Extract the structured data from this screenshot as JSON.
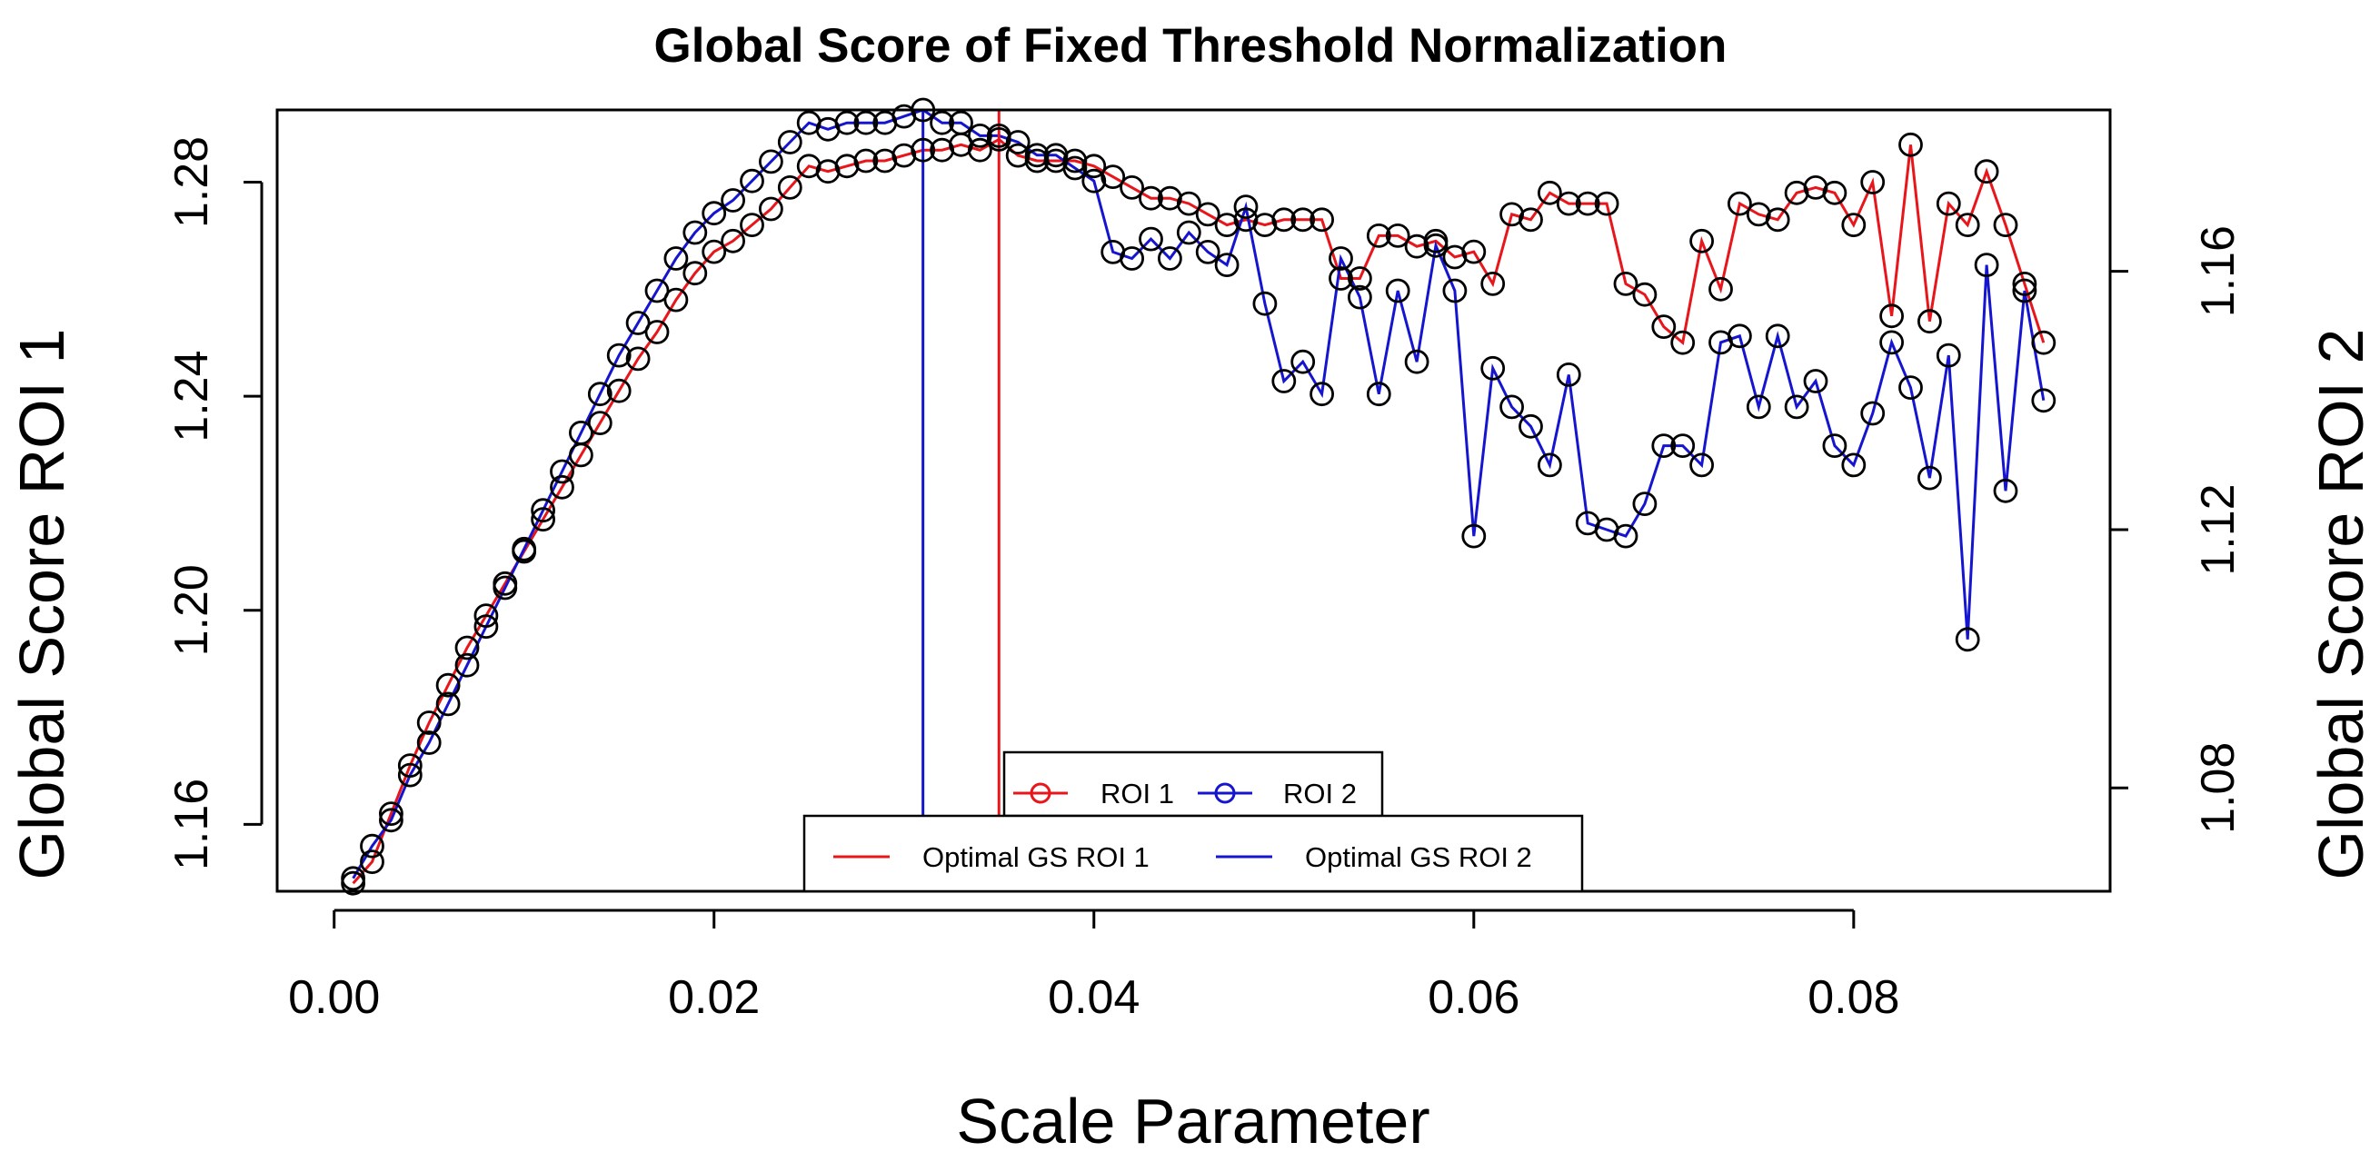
{
  "chart_data": {
    "type": "line",
    "title": "Global Score of Fixed Threshold Normalization",
    "xlabel": "Scale Parameter",
    "ylabel_left": "Global Score ROI 1",
    "ylabel_right": "Global Score ROI 2",
    "xlim": [
      -0.003,
      0.0935
    ],
    "ylim_left": [
      1.1475,
      1.2935
    ],
    "ylim_right": [
      1.064,
      1.185
    ],
    "x_ticks": [
      0.0,
      0.02,
      0.04,
      0.06,
      0.08
    ],
    "x_tick_labels": [
      "0.00",
      "0.02",
      "0.04",
      "0.06",
      "0.08"
    ],
    "y_ticks_left": [
      1.16,
      1.2,
      1.24,
      1.28
    ],
    "y_tick_labels_left": [
      "1.16",
      "1.20",
      "1.24",
      "1.28"
    ],
    "y_ticks_right": [
      1.08,
      1.12,
      1.16
    ],
    "y_tick_labels_right": [
      "1.08",
      "1.12",
      "1.16"
    ],
    "grid": false,
    "colors": {
      "roi1": "#e8151b",
      "roi2": "#1515d0",
      "marker": "#000000"
    },
    "series": [
      {
        "name": "ROI 1",
        "axis": "left",
        "color": "#e8151b",
        "x": [
          0.001,
          0.002,
          0.003,
          0.004,
          0.005,
          0.006,
          0.007,
          0.008,
          0.009,
          0.01,
          0.011,
          0.012,
          0.013,
          0.014,
          0.015,
          0.016,
          0.017,
          0.018,
          0.019,
          0.02,
          0.021,
          0.022,
          0.023,
          0.024,
          0.025,
          0.026,
          0.027,
          0.028,
          0.029,
          0.03,
          0.031,
          0.032,
          0.033,
          0.034,
          0.035,
          0.036,
          0.037,
          0.038,
          0.039,
          0.04,
          0.041,
          0.042,
          0.043,
          0.044,
          0.045,
          0.046,
          0.047,
          0.048,
          0.049,
          0.05,
          0.051,
          0.052,
          0.053,
          0.054,
          0.055,
          0.056,
          0.057,
          0.058,
          0.059,
          0.06,
          0.061,
          0.062,
          0.063,
          0.064,
          0.065,
          0.066,
          0.067,
          0.068,
          0.069,
          0.07,
          0.071,
          0.072,
          0.073,
          0.074,
          0.075,
          0.076,
          0.077,
          0.078,
          0.079,
          0.08,
          0.081,
          0.082,
          0.083,
          0.084,
          0.085,
          0.086,
          0.087,
          0.088,
          0.089,
          0.09
        ],
        "values": [
          1.149,
          1.153,
          1.162,
          1.171,
          1.179,
          1.186,
          1.193,
          1.199,
          1.205,
          1.211,
          1.217,
          1.223,
          1.229,
          1.235,
          1.241,
          1.247,
          1.252,
          1.258,
          1.263,
          1.267,
          1.269,
          1.272,
          1.275,
          1.279,
          1.283,
          1.282,
          1.283,
          1.284,
          1.284,
          1.285,
          1.286,
          1.286,
          1.287,
          1.286,
          1.288,
          1.285,
          1.284,
          1.284,
          1.284,
          1.283,
          1.281,
          1.279,
          1.277,
          1.277,
          1.276,
          1.274,
          1.272,
          1.273,
          1.272,
          1.273,
          1.273,
          1.273,
          1.262,
          1.262,
          1.27,
          1.27,
          1.268,
          1.269,
          1.266,
          1.267,
          1.261,
          1.274,
          1.273,
          1.278,
          1.276,
          1.276,
          1.276,
          1.261,
          1.259,
          1.253,
          1.25,
          1.269,
          1.26,
          1.276,
          1.274,
          1.273,
          1.278,
          1.279,
          1.278,
          1.272,
          1.28,
          1.255,
          1.287,
          1.254,
          1.276,
          1.272,
          1.282,
          1.272,
          1.261,
          1.25
        ]
      },
      {
        "name": "ROI 2",
        "axis": "right",
        "color": "#1515d0",
        "x": [
          0.001,
          0.002,
          0.003,
          0.004,
          0.005,
          0.006,
          0.007,
          0.008,
          0.009,
          0.01,
          0.011,
          0.012,
          0.013,
          0.014,
          0.015,
          0.016,
          0.017,
          0.018,
          0.019,
          0.02,
          0.021,
          0.022,
          0.023,
          0.024,
          0.025,
          0.026,
          0.027,
          0.028,
          0.029,
          0.03,
          0.031,
          0.032,
          0.033,
          0.034,
          0.035,
          0.036,
          0.037,
          0.038,
          0.039,
          0.04,
          0.041,
          0.042,
          0.043,
          0.044,
          0.045,
          0.046,
          0.047,
          0.048,
          0.049,
          0.05,
          0.051,
          0.052,
          0.053,
          0.054,
          0.055,
          0.056,
          0.057,
          0.058,
          0.059,
          0.06,
          0.061,
          0.062,
          0.063,
          0.064,
          0.065,
          0.066,
          0.067,
          0.068,
          0.069,
          0.07,
          0.071,
          0.072,
          0.073,
          0.074,
          0.075,
          0.076,
          0.077,
          0.078,
          0.079,
          0.08,
          0.081,
          0.082,
          0.083,
          0.084,
          0.085,
          0.086,
          0.087,
          0.088,
          0.089,
          0.09
        ],
        "values": [
          1.066,
          1.071,
          1.075,
          1.082,
          1.087,
          1.093,
          1.099,
          1.105,
          1.111,
          1.117,
          1.123,
          1.129,
          1.135,
          1.141,
          1.147,
          1.152,
          1.157,
          1.162,
          1.166,
          1.169,
          1.171,
          1.174,
          1.177,
          1.18,
          1.183,
          1.182,
          1.183,
          1.183,
          1.183,
          1.184,
          1.185,
          1.183,
          1.183,
          1.181,
          1.181,
          1.18,
          1.178,
          1.178,
          1.176,
          1.174,
          1.163,
          1.162,
          1.165,
          1.162,
          1.166,
          1.163,
          1.161,
          1.17,
          1.155,
          1.143,
          1.146,
          1.141,
          1.162,
          1.156,
          1.141,
          1.157,
          1.146,
          1.164,
          1.157,
          1.119,
          1.145,
          1.139,
          1.136,
          1.13,
          1.144,
          1.121,
          1.12,
          1.119,
          1.124,
          1.133,
          1.133,
          1.13,
          1.149,
          1.15,
          1.139,
          1.15,
          1.139,
          1.143,
          1.133,
          1.13,
          1.138,
          1.149,
          1.142,
          1.128,
          1.147,
          1.103,
          1.161,
          1.126,
          1.157,
          1.14
        ]
      }
    ],
    "optimal_lines": [
      {
        "name": "Optimal GS ROI 1",
        "x": 0.035,
        "color": "#e8151b"
      },
      {
        "name": "Optimal GS ROI 2",
        "x": 0.031,
        "color": "#1515d0"
      }
    ],
    "legends": [
      {
        "placement": "bottom-center",
        "entries": [
          "ROI 1",
          "ROI 2"
        ]
      },
      {
        "placement": "bottom-center",
        "entries": [
          "Optimal GS ROI 1",
          "Optimal GS ROI 2"
        ]
      }
    ]
  }
}
